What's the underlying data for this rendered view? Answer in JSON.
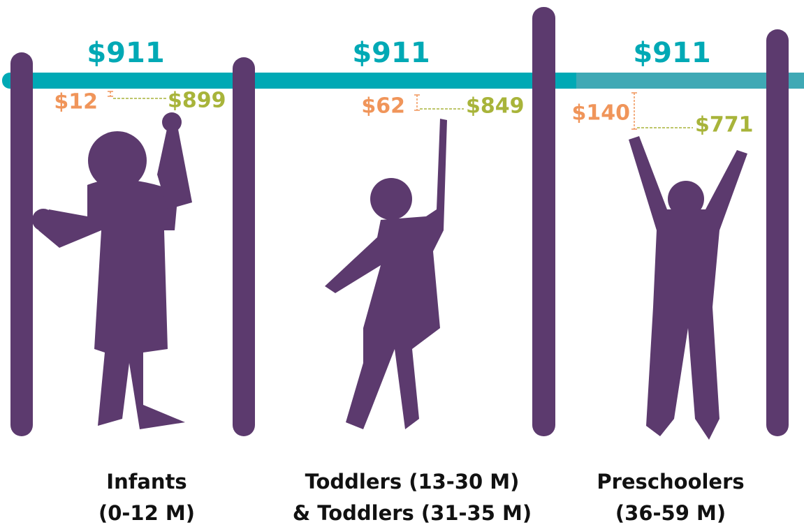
{
  "groups": [
    {
      "total": "$911",
      "gap": "$12",
      "reach": "$899",
      "label": [
        "Infants",
        "(0-12 M)"
      ]
    },
    {
      "total": "$911",
      "gap": "$62",
      "reach": "$849",
      "label": [
        "Toddlers (13-30 M)",
        "& Toddlers (31-35 M)"
      ]
    },
    {
      "total": "$911",
      "gap": "$140",
      "reach": "$771",
      "label": [
        "Preschoolers",
        "(36-59 M)"
      ]
    }
  ]
}
